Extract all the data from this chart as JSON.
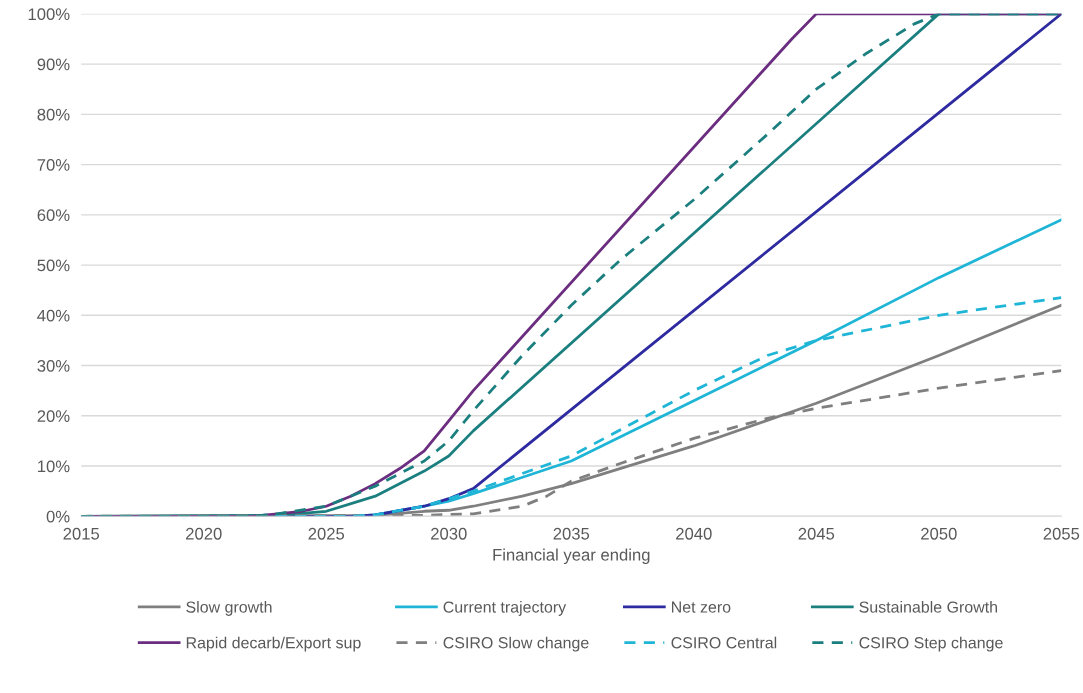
{
  "chart_data": {
    "type": "line",
    "xlabel": "Financial year ending",
    "xlim": [
      2015,
      2055
    ],
    "xticks": [
      2015,
      2020,
      2025,
      2030,
      2035,
      2040,
      2045,
      2050,
      2055
    ],
    "ylim": [
      0,
      100
    ],
    "yticks": [
      {
        "value": 0,
        "label": "0%"
      },
      {
        "value": 10,
        "label": "10%"
      },
      {
        "value": 20,
        "label": "20%"
      },
      {
        "value": 30,
        "label": "30%"
      },
      {
        "value": 40,
        "label": "40%"
      },
      {
        "value": 50,
        "label": "50%"
      },
      {
        "value": 60,
        "label": "60%"
      },
      {
        "value": 70,
        "label": "70%"
      },
      {
        "value": 80,
        "label": "80%"
      },
      {
        "value": 90,
        "label": "90%"
      },
      {
        "value": 100,
        "label": "100%"
      }
    ],
    "grid": "y",
    "legend": "bottom",
    "series": [
      {
        "name": "Slow growth",
        "color": "#7f7f7f",
        "line_style": "solid",
        "x": [
          2015,
          2027,
          2029,
          2030,
          2031,
          2033,
          2035,
          2040,
          2045,
          2050,
          2055
        ],
        "values": [
          0,
          0.2,
          1,
          1.2,
          2,
          4,
          6.5,
          14,
          22.5,
          32,
          42
        ]
      },
      {
        "name": "Current trajectory",
        "color": "#1fb5d6",
        "line_style": "solid",
        "x": [
          2015,
          2026,
          2027,
          2029,
          2030,
          2031,
          2035,
          2040,
          2045,
          2050,
          2055
        ],
        "values": [
          0,
          0,
          0.3,
          2,
          3,
          4.5,
          11,
          23,
          35,
          47.5,
          59
        ]
      },
      {
        "name": "Net zero",
        "color": "#2e2aa0",
        "line_style": "solid",
        "x": [
          2015,
          2026,
          2027,
          2029,
          2030,
          2031,
          2055
        ],
        "values": [
          0,
          0,
          0.3,
          2,
          3.5,
          5.5,
          100
        ]
      },
      {
        "name": "Sustainable Growth",
        "color": "#1b7f7f",
        "line_style": "solid",
        "x": [
          2015,
          2023,
          2025,
          2027,
          2029,
          2030,
          2031,
          2050,
          2055
        ],
        "values": [
          0,
          0.2,
          1,
          4,
          9,
          12,
          17,
          100,
          100
        ]
      },
      {
        "name": "Rapid decarb/Export sup",
        "color": "#6b2d7f",
        "line_style": "solid",
        "x": [
          2015,
          2022,
          2023,
          2024,
          2025,
          2026,
          2027,
          2028,
          2029,
          2030,
          2031,
          2044,
          2045,
          2055
        ],
        "values": [
          0,
          0,
          0.5,
          1,
          2,
          4,
          6.5,
          9.5,
          13,
          19,
          25,
          95,
          100,
          100
        ]
      },
      {
        "name": "CSIRO Slow change",
        "color": "#7f7f7f",
        "line_style": "dashed",
        "x": [
          2015,
          2029,
          2031,
          2033,
          2034,
          2035,
          2037,
          2040,
          2043,
          2045,
          2050,
          2055
        ],
        "values": [
          0,
          0.2,
          0.5,
          2,
          4,
          7,
          10.5,
          15.5,
          19.5,
          21.5,
          25.5,
          29
        ]
      },
      {
        "name": "CSIRO Central",
        "color": "#1fb5d6",
        "line_style": "dashed",
        "x": [
          2015,
          2026,
          2027,
          2029,
          2031,
          2035,
          2040,
          2043,
          2045,
          2050,
          2055
        ],
        "values": [
          0,
          0,
          0.3,
          2,
          5,
          12,
          25,
          32,
          35,
          40,
          43.5
        ]
      },
      {
        "name": "CSIRO Step change",
        "color": "#1b7f7f",
        "line_style": "dashed",
        "x": [
          2015,
          2022,
          2023,
          2025,
          2027,
          2029,
          2030,
          2031,
          2033,
          2035,
          2037,
          2040,
          2043,
          2045,
          2047,
          2049,
          2050,
          2055
        ],
        "values": [
          0,
          0,
          0.5,
          2,
          6,
          11,
          15,
          21,
          32,
          42,
          51,
          63,
          76,
          85,
          92,
          98,
          100,
          100
        ]
      }
    ]
  }
}
